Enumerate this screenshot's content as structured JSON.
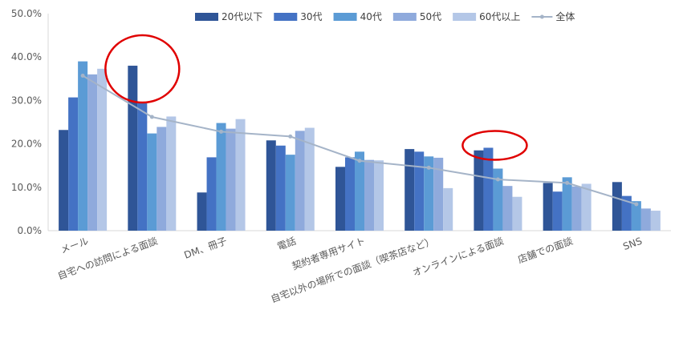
{
  "chart_data": {
    "type": "bar",
    "categories": [
      "メール",
      "自宅への訪問による面談",
      "DM、冊子",
      "電話",
      "契約者専用サイト",
      "自宅以外の場所での面談（喫茶店など）",
      "オンラインによる面談",
      "店舗での面談",
      "SNS"
    ],
    "series": [
      {
        "name": "20代以下",
        "color": "#2f5597",
        "values": [
          23.2,
          38.0,
          8.8,
          20.8,
          14.7,
          18.8,
          18.5,
          11.0,
          11.2
        ]
      },
      {
        "name": "30代",
        "color": "#4472c4",
        "values": [
          30.7,
          29.4,
          16.9,
          19.6,
          16.9,
          18.2,
          19.1,
          9.0,
          8.0
        ]
      },
      {
        "name": "40代",
        "color": "#5b9bd5",
        "values": [
          39.0,
          22.4,
          24.8,
          17.5,
          18.2,
          17.1,
          14.3,
          12.3,
          6.8
        ]
      },
      {
        "name": "50代",
        "color": "#8faadc",
        "values": [
          36.0,
          23.9,
          23.5,
          23.0,
          16.3,
          16.8,
          10.3,
          10.2,
          5.1
        ]
      },
      {
        "name": "60代以上",
        "color": "#b4c7e7",
        "values": [
          37.3,
          26.3,
          25.7,
          23.7,
          16.2,
          9.8,
          7.8,
          10.8,
          4.6
        ]
      }
    ],
    "line_series": {
      "name": "全体",
      "color": "#a5b4c8",
      "values": [
        35.7,
        26.2,
        22.8,
        21.7,
        16.1,
        14.5,
        11.8,
        11.0,
        6.1
      ]
    },
    "yticks": [
      "0.0%",
      "10.0%",
      "20.0%",
      "30.0%",
      "40.0%",
      "50.0%"
    ],
    "ylim": [
      0,
      50
    ],
    "legend_position": "top",
    "grid": false,
    "annotations": [
      {
        "type": "ellipse",
        "around": "自宅への訪問による面談",
        "series": "20代以下",
        "color": "#e00000"
      },
      {
        "type": "ellipse",
        "around": "オンラインによる面談",
        "series": "30代",
        "color": "#e00000"
      }
    ]
  }
}
